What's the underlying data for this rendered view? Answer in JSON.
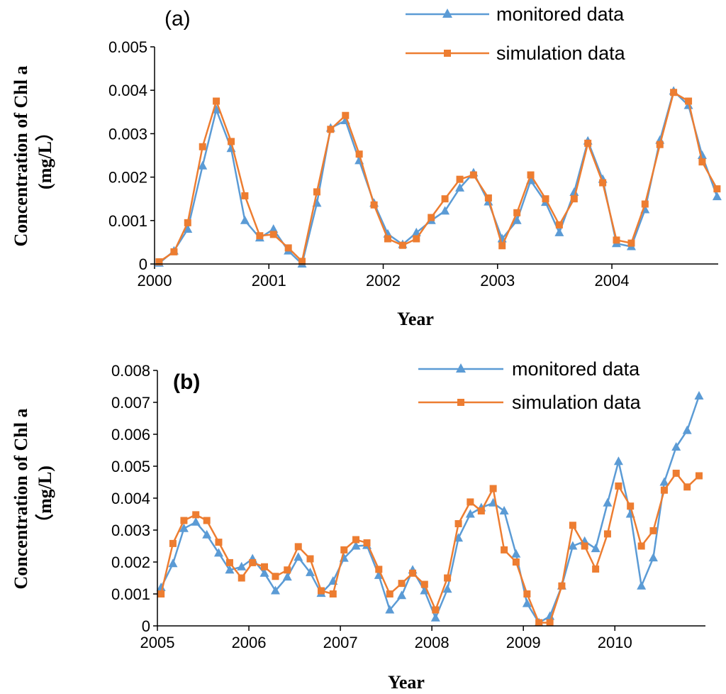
{
  "colors": {
    "monitored": "#5b9bd5",
    "simulation": "#ed7d31",
    "axis": "#000000"
  },
  "chart_data": [
    {
      "type": "line",
      "panel_label": "(a)",
      "xlabel": "Year",
      "ylabel_lines": [
        "Concentration of Chl a",
        "(mg/L）"
      ],
      "xlim": [
        2000,
        2004.93
      ],
      "ylim": [
        0,
        0.005
      ],
      "x_ticks": [
        "2000",
        "2001",
        "2002",
        "2003",
        "2004"
      ],
      "y_ticks": [
        "0",
        "0.001",
        "0.002",
        "0.003",
        "0.004",
        "0.005"
      ],
      "legend_position": "top-right",
      "series": [
        {
          "name": "monitored data",
          "key": "monitored",
          "marker": "triangle",
          "x": [
            2000.04,
            2000.17,
            2000.29,
            2000.42,
            2000.54,
            2000.67,
            2000.79,
            2000.92,
            2001.04,
            2001.17,
            2001.29,
            2001.42,
            2001.54,
            2001.67,
            2001.79,
            2001.92,
            2002.04,
            2002.17,
            2002.29,
            2002.42,
            2002.54,
            2002.67,
            2002.79,
            2002.92,
            2003.04,
            2003.17,
            2003.29,
            2003.42,
            2003.54,
            2003.67,
            2003.79,
            2003.92,
            2004.04,
            2004.17,
            2004.29,
            2004.42,
            2004.54,
            2004.67,
            2004.79,
            2004.92
          ],
          "values": [
            2e-05,
            0.0003,
            0.0008,
            0.00226,
            0.00355,
            0.00266,
            0.001,
            0.0006,
            0.0008,
            0.0003,
            0.0,
            0.0014,
            0.00313,
            0.0033,
            0.00238,
            0.0014,
            0.00069,
            0.00045,
            0.00072,
            0.001,
            0.00122,
            0.00175,
            0.0021,
            0.00143,
            0.00058,
            0.001,
            0.00192,
            0.00142,
            0.00072,
            0.00165,
            0.00283,
            0.00195,
            0.00047,
            0.0004,
            0.00125,
            0.00285,
            0.00398,
            0.00365,
            0.0025,
            0.00155
          ]
        },
        {
          "name": "simulation data",
          "key": "simulation",
          "marker": "square",
          "x": [
            2000.04,
            2000.17,
            2000.29,
            2000.42,
            2000.54,
            2000.67,
            2000.79,
            2000.92,
            2001.04,
            2001.17,
            2001.29,
            2001.42,
            2001.54,
            2001.67,
            2001.79,
            2001.92,
            2002.04,
            2002.17,
            2002.29,
            2002.42,
            2002.54,
            2002.67,
            2002.79,
            2002.92,
            2003.04,
            2003.17,
            2003.29,
            2003.42,
            2003.54,
            2003.67,
            2003.79,
            2003.92,
            2004.04,
            2004.17,
            2004.29,
            2004.42,
            2004.54,
            2004.67,
            2004.79,
            2004.92
          ],
          "values": [
            5e-05,
            0.00028,
            0.00095,
            0.0027,
            0.00375,
            0.00282,
            0.00157,
            0.00065,
            0.00068,
            0.00037,
            6e-05,
            0.00166,
            0.0031,
            0.00342,
            0.00253,
            0.00136,
            0.00058,
            0.00043,
            0.00058,
            0.00107,
            0.0015,
            0.00195,
            0.00205,
            0.00152,
            0.00042,
            0.00118,
            0.00205,
            0.0015,
            0.0009,
            0.0015,
            0.00278,
            0.00187,
            0.00055,
            0.00048,
            0.00138,
            0.00275,
            0.00395,
            0.00375,
            0.00235,
            0.00173
          ]
        }
      ]
    },
    {
      "type": "line",
      "panel_label": "(b)",
      "xlabel": "Year",
      "ylabel_lines": [
        "Concentration of Chl a",
        "（mg/L)"
      ],
      "xlim": [
        2005,
        2010.99
      ],
      "ylim": [
        0,
        0.008
      ],
      "x_ticks": [
        "2005",
        "2006",
        "2007",
        "2008",
        "2009",
        "2010"
      ],
      "y_ticks": [
        "0",
        "0.001",
        "0.002",
        "0.003",
        "0.004",
        "0.005",
        "0.006",
        "0.007",
        "0.008"
      ],
      "legend_position": "top-right",
      "series": [
        {
          "name": "monitored data",
          "key": "monitored",
          "marker": "triangle",
          "x": [
            2005.04,
            2005.17,
            2005.29,
            2005.42,
            2005.54,
            2005.67,
            2005.79,
            2005.92,
            2006.04,
            2006.17,
            2006.29,
            2006.42,
            2006.54,
            2006.67,
            2006.79,
            2006.92,
            2007.04,
            2007.17,
            2007.29,
            2007.42,
            2007.54,
            2007.67,
            2007.79,
            2007.92,
            2008.04,
            2008.17,
            2008.29,
            2008.42,
            2008.54,
            2008.67,
            2008.79,
            2008.92,
            2009.04,
            2009.17,
            2009.29,
            2009.42,
            2009.54,
            2009.67,
            2009.79,
            2009.92,
            2010.04,
            2010.17,
            2010.29,
            2010.42,
            2010.54,
            2010.67,
            2010.79,
            2010.92
          ],
          "values": [
            0.0012,
            0.00195,
            0.00305,
            0.00325,
            0.00285,
            0.00228,
            0.00175,
            0.00185,
            0.0021,
            0.00165,
            0.0011,
            0.00153,
            0.00215,
            0.00167,
            0.00102,
            0.0014,
            0.00212,
            0.0025,
            0.00252,
            0.00158,
            0.0005,
            0.00095,
            0.00175,
            0.0011,
            0.00025,
            0.00115,
            0.00275,
            0.0035,
            0.0037,
            0.00385,
            0.0036,
            0.00225,
            0.0007,
            0.0001,
            0.0003,
            0.00125,
            0.0025,
            0.00265,
            0.00242,
            0.00385,
            0.00515,
            0.0035,
            0.00125,
            0.00213,
            0.0045,
            0.0056,
            0.00612,
            0.0072
          ]
        },
        {
          "name": "simulation data",
          "key": "simulation",
          "marker": "square",
          "x": [
            2005.04,
            2005.17,
            2005.29,
            2005.42,
            2005.54,
            2005.67,
            2005.79,
            2005.92,
            2006.04,
            2006.17,
            2006.29,
            2006.42,
            2006.54,
            2006.67,
            2006.79,
            2006.92,
            2007.04,
            2007.17,
            2007.29,
            2007.42,
            2007.54,
            2007.67,
            2007.79,
            2007.92,
            2008.04,
            2008.17,
            2008.29,
            2008.42,
            2008.54,
            2008.67,
            2008.79,
            2008.92,
            2009.04,
            2009.17,
            2009.29,
            2009.42,
            2009.54,
            2009.67,
            2009.79,
            2009.92,
            2010.04,
            2010.17,
            2010.29,
            2010.42,
            2010.54,
            2010.67,
            2010.79,
            2010.92
          ],
          "values": [
            0.001,
            0.00258,
            0.0033,
            0.00348,
            0.0033,
            0.00262,
            0.00198,
            0.0015,
            0.00198,
            0.00185,
            0.00155,
            0.00175,
            0.00248,
            0.0021,
            0.0011,
            0.001,
            0.00238,
            0.0027,
            0.0026,
            0.00177,
            0.001,
            0.00133,
            0.00165,
            0.0013,
            0.0005,
            0.0015,
            0.0032,
            0.00388,
            0.0036,
            0.0043,
            0.00238,
            0.002,
            0.001,
            0.0001,
            0.0001,
            0.00125,
            0.00315,
            0.0025,
            0.00178,
            0.00288,
            0.00438,
            0.00375,
            0.0025,
            0.00298,
            0.00425,
            0.00478,
            0.00435,
            0.0047
          ]
        }
      ]
    }
  ]
}
